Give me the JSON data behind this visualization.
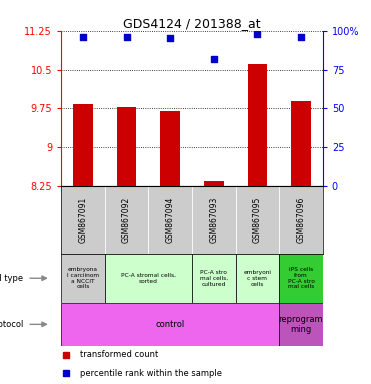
{
  "title": "GDS4124 / 201388_at",
  "samples": [
    "GSM867091",
    "GSM867092",
    "GSM867094",
    "GSM867093",
    "GSM867095",
    "GSM867096"
  ],
  "bar_values": [
    9.83,
    9.78,
    9.7,
    8.35,
    10.6,
    9.9
  ],
  "scatter_values": [
    96,
    96,
    95,
    82,
    98,
    96
  ],
  "ylim_left": [
    8.25,
    11.25
  ],
  "ylim_right": [
    0,
    100
  ],
  "yticks_left": [
    8.25,
    9.0,
    9.75,
    10.5,
    11.25
  ],
  "yticks_right": [
    0,
    25,
    50,
    75,
    100
  ],
  "ytick_labels_left": [
    "8.25",
    "9",
    "9.75",
    "10.5",
    "11.25"
  ],
  "ytick_labels_right": [
    "0",
    "25",
    "50",
    "75",
    "100%"
  ],
  "bar_color": "#cc0000",
  "scatter_color": "#0000cc",
  "bg_color": "#ffffff",
  "gridline_color": "#000000",
  "sample_bg_color": "#cccccc",
  "cell_types": [
    {
      "label": "embryona\nl carciinom\na NCCIT\ncells",
      "span": [
        0,
        1
      ],
      "color": "#cccccc"
    },
    {
      "label": "PC-A stromal cells,\nsorted",
      "span": [
        1,
        3
      ],
      "color": "#ccffcc"
    },
    {
      "label": "PC-A stro\nmal cells,\ncultured",
      "span": [
        3,
        4
      ],
      "color": "#ccffcc"
    },
    {
      "label": "embryoni\nc stem\ncells",
      "span": [
        4,
        5
      ],
      "color": "#ccffcc"
    },
    {
      "label": "iPS cells\nfrom\nPC-A stro\nmal cells",
      "span": [
        5,
        6
      ],
      "color": "#33cc33"
    }
  ],
  "protocols": [
    {
      "label": "control",
      "span": [
        0,
        5
      ],
      "color": "#ee66ee"
    },
    {
      "label": "reprogram\nming",
      "span": [
        5,
        6
      ],
      "color": "#bb55bb"
    }
  ],
  "legend_items": [
    {
      "label": "transformed count",
      "color": "#cc0000"
    },
    {
      "label": "percentile rank within the sample",
      "color": "#0000cc"
    }
  ]
}
